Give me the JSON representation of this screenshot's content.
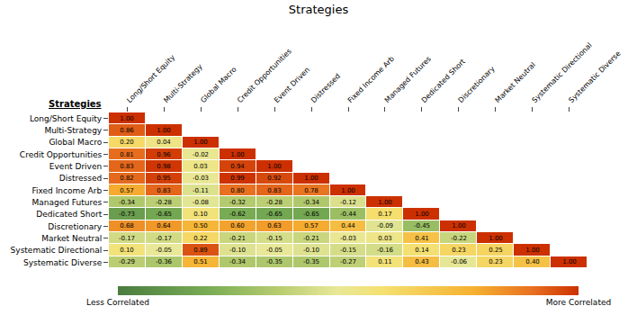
{
  "chart_data": {
    "type": "heatmap",
    "title": "Strategies",
    "ylabel": "Strategies",
    "categories": [
      "Long/Short Equity",
      "Multi-Strategy",
      "Global Macro",
      "Credit Opportunities",
      "Event Driven",
      "Distressed",
      "Fixed Income Arb",
      "Managed Futures",
      "Dedicated Short",
      "Discretionary",
      "Market Neutral",
      "Systematic Directional",
      "Systematic Diverse"
    ],
    "values": [
      [
        1.0,
        null,
        null,
        null,
        null,
        null,
        null,
        null,
        null,
        null,
        null,
        null,
        null
      ],
      [
        0.86,
        1.0,
        null,
        null,
        null,
        null,
        null,
        null,
        null,
        null,
        null,
        null,
        null
      ],
      [
        0.2,
        0.04,
        1.0,
        null,
        null,
        null,
        null,
        null,
        null,
        null,
        null,
        null,
        null
      ],
      [
        0.81,
        0.96,
        -0.02,
        1.0,
        null,
        null,
        null,
        null,
        null,
        null,
        null,
        null,
        null
      ],
      [
        0.83,
        0.98,
        0.03,
        0.94,
        1.0,
        null,
        null,
        null,
        null,
        null,
        null,
        null,
        null
      ],
      [
        0.82,
        0.95,
        -0.03,
        0.99,
        0.92,
        1.0,
        null,
        null,
        null,
        null,
        null,
        null,
        null
      ],
      [
        0.57,
        0.83,
        -0.11,
        0.8,
        0.83,
        0.78,
        1.0,
        null,
        null,
        null,
        null,
        null,
        null
      ],
      [
        -0.34,
        -0.28,
        -0.08,
        -0.32,
        -0.28,
        -0.34,
        -0.12,
        1.0,
        null,
        null,
        null,
        null,
        null
      ],
      [
        -0.73,
        -0.65,
        0.1,
        -0.62,
        -0.65,
        -0.65,
        -0.44,
        0.17,
        1.0,
        null,
        null,
        null,
        null
      ],
      [
        0.68,
        0.64,
        0.5,
        0.6,
        0.63,
        0.57,
        0.44,
        -0.09,
        -0.45,
        1.0,
        null,
        null,
        null
      ],
      [
        -0.17,
        -0.17,
        0.22,
        -0.21,
        -0.15,
        -0.21,
        -0.03,
        0.03,
        0.41,
        -0.22,
        1.0,
        null,
        null
      ],
      [
        0.1,
        -0.05,
        0.89,
        -0.1,
        -0.05,
        -0.1,
        -0.15,
        -0.16,
        0.14,
        0.23,
        0.25,
        1.0,
        null
      ],
      [
        -0.29,
        -0.36,
        0.51,
        -0.34,
        -0.35,
        -0.35,
        -0.27,
        0.11,
        0.43,
        -0.06,
        0.23,
        0.4,
        1.0
      ]
    ],
    "value_labels": [
      [
        "1.00",
        null,
        null,
        null,
        null,
        null,
        null,
        null,
        null,
        null,
        null,
        null,
        null
      ],
      [
        "0.86",
        "1.00",
        null,
        null,
        null,
        null,
        null,
        null,
        null,
        null,
        null,
        null,
        null
      ],
      [
        "0.20",
        "0.04",
        "1.00",
        null,
        null,
        null,
        null,
        null,
        null,
        null,
        null,
        null,
        null
      ],
      [
        "0.81",
        "0.96",
        "-0.02",
        "1.00",
        null,
        null,
        null,
        null,
        null,
        null,
        null,
        null,
        null
      ],
      [
        "0.83",
        "0.98",
        "0.03",
        "0.94",
        "1.00",
        null,
        null,
        null,
        null,
        null,
        null,
        null,
        null
      ],
      [
        "0.82",
        "0.95",
        "-0.03",
        "0.99",
        "0.92",
        "1.00",
        null,
        null,
        null,
        null,
        null,
        null,
        null
      ],
      [
        "0.57",
        "0.83",
        "-0.11",
        "0.80",
        "0.83",
        "0.78",
        "1.00",
        null,
        null,
        null,
        null,
        null,
        null
      ],
      [
        "-0.34",
        "-0.28",
        "-0.08",
        "-0.32",
        "-0.28",
        "-0.34",
        "-0.12",
        "1.00",
        null,
        null,
        null,
        null,
        null
      ],
      [
        "-0.73",
        "-0.65",
        "0.10",
        "-0.62",
        "-0.65",
        "-0.65",
        "-0.44",
        "0.17",
        "1.00",
        null,
        null,
        null,
        null
      ],
      [
        "0.68",
        "0.64",
        "0.50",
        "0.60",
        "0.63",
        "0.57",
        "0.44",
        "-0.09",
        "-0.45",
        "1.00",
        null,
        null,
        null
      ],
      [
        "-0.17",
        "-0.17",
        "0.22",
        "-0.21",
        "-0.15",
        "-0.21",
        "-0.03",
        "0.03",
        "0.41",
        "-0.22",
        "1.00",
        null,
        null
      ],
      [
        "0.10",
        "-0.05",
        "0.89",
        "-0.10",
        "-0.05",
        "-0.10",
        "-0.15",
        "-0.16",
        "0.14",
        "0.23",
        "0.25",
        "1.00",
        null
      ],
      [
        "-0.29",
        "-0.36",
        "0.51",
        "-0.34",
        "-0.35",
        "-0.35",
        "-0.27",
        "0.11",
        "0.43",
        "-0.06",
        "0.23",
        "0.40",
        "1.00"
      ]
    ],
    "data_labels": true,
    "zlim": [
      -1.0,
      1.0
    ],
    "color_stops": [
      -1.0,
      -0.6,
      -0.3,
      -0.05,
      0.15,
      0.55,
      0.8,
      1.0
    ],
    "colors": [
      "#4a7c3f",
      "#7aad55",
      "#b8cc70",
      "#e8e898",
      "#f5e070",
      "#f5b030",
      "#e87020",
      "#cc3000"
    ],
    "colorbar_ticks": [
      {
        "value": -1.0,
        "label": "Less Correlated"
      },
      {
        "value": 1.0,
        "label": "More Correlated"
      }
    ],
    "grid": false
  }
}
